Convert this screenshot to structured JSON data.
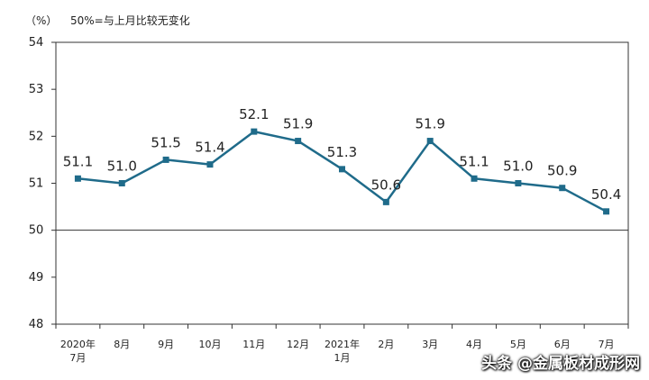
{
  "chart_data": {
    "type": "line",
    "unit": "（%）",
    "note": "50%=与上月比较无变化",
    "categories": [
      [
        "2020年",
        "7月"
      ],
      [
        "8月"
      ],
      [
        "9月"
      ],
      [
        "10月"
      ],
      [
        "11月"
      ],
      [
        "12月"
      ],
      [
        "2021年",
        "1月"
      ],
      [
        "2月"
      ],
      [
        "3月"
      ],
      [
        "4月"
      ],
      [
        "5月"
      ],
      [
        "6月"
      ],
      [
        "7月"
      ]
    ],
    "values": [
      51.1,
      51.0,
      51.5,
      51.4,
      52.1,
      51.9,
      51.3,
      50.6,
      51.9,
      51.1,
      51.0,
      50.9,
      50.4
    ],
    "value_labels": [
      "51.1",
      "51.0",
      "51.5",
      "51.4",
      "52.1",
      "51.9",
      "51.3",
      "50.6",
      "51.9",
      "51.1",
      "51.0",
      "50.9",
      "50.4"
    ],
    "ylim": [
      48,
      54
    ],
    "yticks": [
      48,
      49,
      50,
      51,
      52,
      53,
      54
    ],
    "reference_line": 50,
    "line_color": "#1f6b8a",
    "grid": false,
    "legend": "none"
  },
  "watermark": "头条 @金属板材成形网"
}
